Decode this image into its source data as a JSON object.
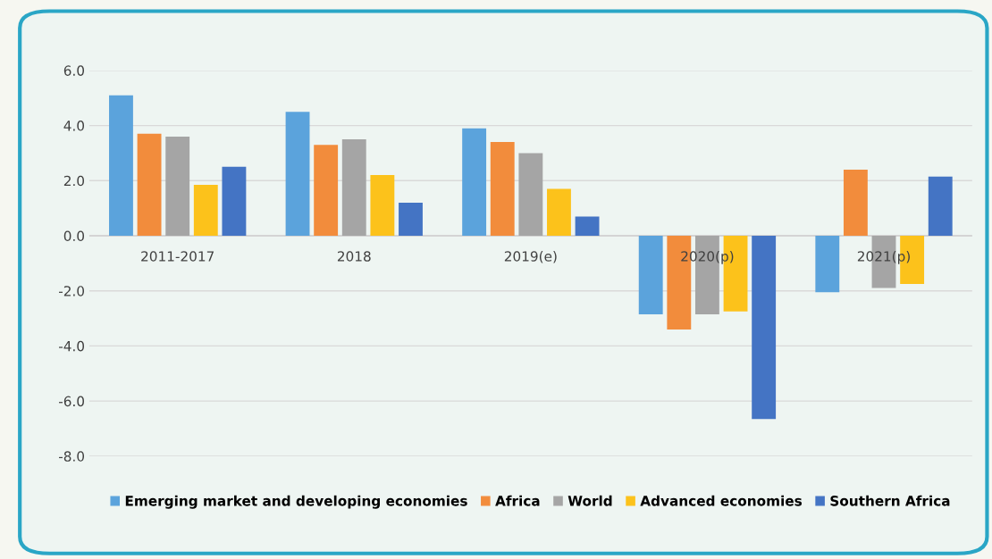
{
  "chart_data": {
    "type": "bar",
    "categories": [
      "2011-2017",
      "2018",
      "2019(e)",
      "2020(p)",
      "2021(p)"
    ],
    "series": [
      {
        "name": "Emerging market and developing economies",
        "color": "#5ba3dc",
        "values": [
          5.1,
          4.5,
          3.9,
          -2.85,
          -2.05
        ]
      },
      {
        "name": "Africa",
        "color": "#f28c3c",
        "values": [
          3.7,
          3.3,
          3.4,
          -3.4,
          2.4
        ]
      },
      {
        "name": "World",
        "color": "#a5a5a5",
        "values": [
          3.6,
          3.5,
          3.0,
          -2.85,
          -1.9
        ]
      },
      {
        "name": "Advanced economies",
        "color": "#fcc21b",
        "values": [
          1.85,
          2.2,
          1.7,
          -2.75,
          -1.75
        ]
      },
      {
        "name": "Southern Africa",
        "color": "#4474c4",
        "values": [
          2.5,
          1.2,
          0.7,
          -6.65,
          2.15
        ]
      }
    ],
    "ylim": [
      -8,
      6
    ],
    "yticks": [
      {
        "value": 6,
        "label": "6.0"
      },
      {
        "value": 4,
        "label": "4.0"
      },
      {
        "value": 2,
        "label": "2.0"
      },
      {
        "value": 0,
        "label": "0.0"
      },
      {
        "value": -2,
        "label": "-2.0"
      },
      {
        "value": -4,
        "label": "-4.0"
      },
      {
        "value": -6,
        "label": "-6.0"
      },
      {
        "value": -8,
        "label": "-8.0"
      }
    ],
    "grid": "y",
    "legend": "bottom"
  }
}
